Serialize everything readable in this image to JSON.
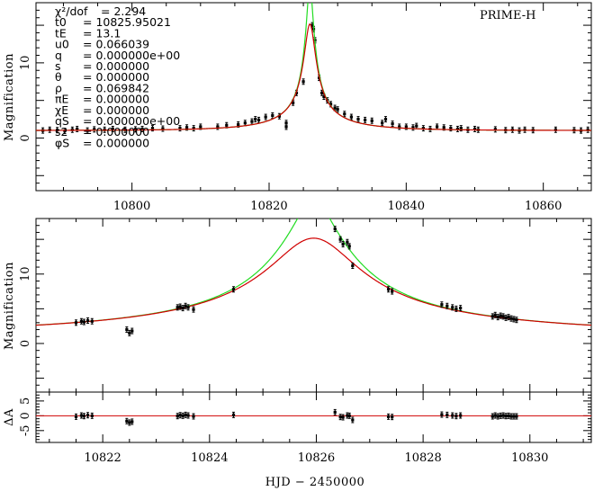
{
  "parameters": [
    {
      "symbol": "χ²/dof",
      "value": "2.294"
    },
    {
      "symbol": "t0",
      "value": "10825.95021"
    },
    {
      "symbol": "tE",
      "value": "13.1"
    },
    {
      "symbol": "u0",
      "value": "0.066039"
    },
    {
      "symbol": "q",
      "value": "0.000000e+00"
    },
    {
      "symbol": "s",
      "value": "0.000000"
    },
    {
      "symbol": "θ",
      "value": "0.000000"
    },
    {
      "symbol": "ρ",
      "value": "0.069842"
    },
    {
      "symbol": "πE",
      "value": "0.000000"
    },
    {
      "symbol": "χE",
      "value": "0.000000"
    },
    {
      "symbol": "qS",
      "value": "0.000000e+00"
    },
    {
      "symbol": "s2",
      "value": "0.000000"
    },
    {
      "symbol": "φS",
      "value": "0.000000"
    }
  ],
  "colors": {
    "model_red": "#d00000",
    "model_green": "#22dd22",
    "data": "#000000"
  },
  "chart_data": [
    {
      "type": "line",
      "panel": "full-lightcurve",
      "annotation": "PRIME-H",
      "xlabel": "",
      "ylabel": "Magnification",
      "xlim": [
        10786,
        10867
      ],
      "ylim": [
        -7,
        18
      ],
      "xticks": [
        10800,
        10820,
        10840,
        10860
      ],
      "yticks": [
        0,
        10
      ],
      "series": [
        {
          "model": "red",
          "u0": 0.066039,
          "t0": 10825.95021,
          "tE": 13.1
        },
        {
          "model": "green",
          "rho": 0.069842,
          "u0": 0.066039,
          "t0": 10825.95021,
          "tE": 13.1
        }
      ],
      "points": [
        [
          10787.0,
          1.0
        ],
        [
          10788.0,
          1.1
        ],
        [
          10789.1,
          1.05
        ],
        [
          10790.2,
          0.95
        ],
        [
          10791.3,
          1.1
        ],
        [
          10792.0,
          1.2
        ],
        [
          10793.5,
          1.0
        ],
        [
          10794.5,
          1.15
        ],
        [
          10796.0,
          1.1
        ],
        [
          10797.2,
          1.2
        ],
        [
          10799.0,
          1.1
        ],
        [
          10800.5,
          1.15
        ],
        [
          10801.5,
          1.2
        ],
        [
          10803.0,
          1.3
        ],
        [
          10804.5,
          1.25
        ],
        [
          10807.0,
          1.3
        ],
        [
          10808.0,
          1.4
        ],
        [
          10809.0,
          1.3
        ],
        [
          10810.0,
          1.5
        ],
        [
          10812.5,
          1.5
        ],
        [
          10813.8,
          1.7
        ],
        [
          10815.5,
          1.8
        ],
        [
          10816.5,
          2.0
        ],
        [
          10817.5,
          2.2
        ],
        [
          10818.0,
          2.5
        ],
        [
          10818.5,
          2.4
        ],
        [
          10819.5,
          2.8
        ],
        [
          10820.5,
          3.0
        ],
        [
          10821.5,
          2.9
        ],
        [
          10822.5,
          1.5
        ],
        [
          10822.5,
          2.0
        ],
        [
          10823.5,
          4.7
        ],
        [
          10824.0,
          6.0
        ],
        [
          10825.0,
          7.5
        ],
        [
          10826.3,
          15.0
        ],
        [
          10826.5,
          14.5
        ],
        [
          10826.7,
          13.0
        ],
        [
          10827.3,
          8.0
        ],
        [
          10827.7,
          6.0
        ],
        [
          10828.0,
          5.5
        ],
        [
          10828.5,
          5.0
        ],
        [
          10829.0,
          4.5
        ],
        [
          10829.6,
          4.0
        ],
        [
          10830.0,
          3.8
        ],
        [
          10831.0,
          3.2
        ],
        [
          10832.0,
          2.8
        ],
        [
          10833.0,
          2.5
        ],
        [
          10834.0,
          2.4
        ],
        [
          10835.0,
          2.3
        ],
        [
          10836.5,
          2.0
        ],
        [
          10837.0,
          2.5
        ],
        [
          10838.0,
          1.9
        ],
        [
          10839.0,
          1.5
        ],
        [
          10840.0,
          1.5
        ],
        [
          10841.0,
          1.4
        ],
        [
          10841.5,
          1.6
        ],
        [
          10842.5,
          1.3
        ],
        [
          10843.5,
          1.2
        ],
        [
          10844.5,
          1.5
        ],
        [
          10845.5,
          1.4
        ],
        [
          10846.5,
          1.3
        ],
        [
          10847.5,
          1.2
        ],
        [
          10848.0,
          1.3
        ],
        [
          10849.0,
          1.1
        ],
        [
          10850.0,
          1.2
        ],
        [
          10850.5,
          1.1
        ],
        [
          10853.0,
          1.15
        ],
        [
          10854.5,
          1.05
        ],
        [
          10855.5,
          1.1
        ],
        [
          10856.5,
          1.0
        ],
        [
          10857.3,
          1.1
        ],
        [
          10858.5,
          1.05
        ],
        [
          10861.8,
          1.1
        ],
        [
          10864.5,
          1.05
        ],
        [
          10865.5,
          1.0
        ],
        [
          10866.5,
          1.1
        ]
      ]
    },
    {
      "type": "line",
      "panel": "zoomed-lightcurve",
      "xlabel": "",
      "ylabel": "Magnification",
      "xlim": [
        10820.75,
        10831.15
      ],
      "ylim": [
        -7,
        18
      ],
      "xticks": [
        10822,
        10824,
        10826,
        10828,
        10830
      ],
      "yticks": [
        0,
        10
      ],
      "points": [
        [
          10821.5,
          3.0
        ],
        [
          10821.6,
          3.2
        ],
        [
          10821.65,
          3.1
        ],
        [
          10821.72,
          3.3
        ],
        [
          10821.8,
          3.2
        ],
        [
          10822.45,
          2.0
        ],
        [
          10822.5,
          1.5
        ],
        [
          10822.55,
          1.8
        ],
        [
          10823.4,
          5.2
        ],
        [
          10823.45,
          5.3
        ],
        [
          10823.5,
          5.1
        ],
        [
          10823.55,
          5.4
        ],
        [
          10823.6,
          5.2
        ],
        [
          10823.7,
          4.9
        ],
        [
          10824.45,
          7.8
        ],
        [
          10826.35,
          16.5
        ],
        [
          10826.45,
          15.0
        ],
        [
          10826.5,
          14.3
        ],
        [
          10826.58,
          14.6
        ],
        [
          10826.62,
          14.0
        ],
        [
          10826.68,
          11.2
        ],
        [
          10827.35,
          7.8
        ],
        [
          10827.42,
          7.5
        ],
        [
          10828.35,
          5.6
        ],
        [
          10828.45,
          5.4
        ],
        [
          10828.55,
          5.2
        ],
        [
          10828.62,
          5.0
        ],
        [
          10828.7,
          5.1
        ],
        [
          10829.3,
          3.9
        ],
        [
          10829.35,
          4.1
        ],
        [
          10829.4,
          3.8
        ],
        [
          10829.45,
          4.0
        ],
        [
          10829.5,
          3.9
        ],
        [
          10829.55,
          3.7
        ],
        [
          10829.6,
          3.8
        ],
        [
          10829.65,
          3.6
        ],
        [
          10829.7,
          3.5
        ],
        [
          10829.75,
          3.4
        ]
      ]
    },
    {
      "type": "scatter",
      "panel": "residuals",
      "xlabel": "HJD − 2450000",
      "ylabel": "ΔA",
      "xlim": [
        10820.75,
        10831.15
      ],
      "ylim": [
        -9,
        8
      ],
      "xticks": [
        10822,
        10824,
        10826,
        10828,
        10830
      ],
      "yticks": [
        -5,
        0,
        5
      ],
      "points": [
        [
          10821.5,
          -0.3
        ],
        [
          10821.6,
          0.1
        ],
        [
          10821.65,
          -0.1
        ],
        [
          10821.72,
          0.2
        ],
        [
          10821.8,
          0.0
        ],
        [
          10822.45,
          -1.8
        ],
        [
          10822.5,
          -2.3
        ],
        [
          10822.55,
          -2.0
        ],
        [
          10823.4,
          -0.1
        ],
        [
          10823.45,
          0.2
        ],
        [
          10823.5,
          0.0
        ],
        [
          10823.55,
          0.3
        ],
        [
          10823.6,
          0.1
        ],
        [
          10823.7,
          -0.2
        ],
        [
          10824.45,
          0.3
        ],
        [
          10826.35,
          1.2
        ],
        [
          10826.45,
          -0.4
        ],
        [
          10826.5,
          -0.5
        ],
        [
          10826.58,
          0.1
        ],
        [
          10826.62,
          0.0
        ],
        [
          10826.68,
          -1.4
        ],
        [
          10827.35,
          -0.3
        ],
        [
          10827.42,
          -0.4
        ],
        [
          10828.35,
          0.4
        ],
        [
          10828.45,
          0.3
        ],
        [
          10828.55,
          0.1
        ],
        [
          10828.62,
          -0.1
        ],
        [
          10828.7,
          0.1
        ],
        [
          10829.3,
          -0.2
        ],
        [
          10829.35,
          0.1
        ],
        [
          10829.4,
          -0.2
        ],
        [
          10829.45,
          0.0
        ],
        [
          10829.5,
          0.1
        ],
        [
          10829.55,
          -0.1
        ],
        [
          10829.6,
          0.0
        ],
        [
          10829.65,
          -0.2
        ],
        [
          10829.7,
          -0.2
        ],
        [
          10829.75,
          -0.2
        ]
      ]
    }
  ]
}
